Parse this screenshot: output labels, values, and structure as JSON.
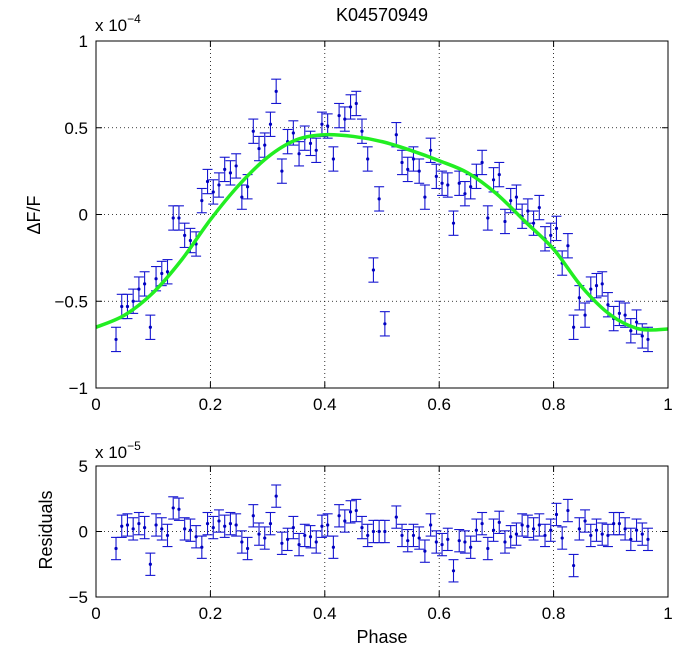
{
  "chart_data": [
    {
      "type": "scatter",
      "title": "K04570949",
      "ylabel": "ΔF/F",
      "xlabel": "",
      "exponent_label": "x 10",
      "exponent_power": "−4",
      "xlim": [
        0,
        1
      ],
      "ylim": [
        -1,
        1
      ],
      "xticks": [
        "0",
        "0.2",
        "0.4",
        "0.6",
        "0.8",
        "1"
      ],
      "yticks": [
        "−1",
        "−0.5",
        "0",
        "0.5",
        "1"
      ],
      "grid": true,
      "series": [
        {
          "kind": "errorbar",
          "color": "#0000c0",
          "x": [
            0.035,
            0.045,
            0.055,
            0.065,
            0.075,
            0.085,
            0.095,
            0.105,
            0.115,
            0.125,
            0.135,
            0.145,
            0.155,
            0.165,
            0.175,
            0.185,
            0.195,
            0.205,
            0.215,
            0.225,
            0.235,
            0.245,
            0.255,
            0.265,
            0.275,
            0.285,
            0.295,
            0.305,
            0.315,
            0.325,
            0.335,
            0.345,
            0.355,
            0.365,
            0.375,
            0.385,
            0.395,
            0.405,
            0.415,
            0.425,
            0.435,
            0.445,
            0.455,
            0.465,
            0.475,
            0.485,
            0.495,
            0.505,
            0.525,
            0.535,
            0.545,
            0.555,
            0.565,
            0.575,
            0.585,
            0.595,
            0.605,
            0.615,
            0.625,
            0.635,
            0.645,
            0.655,
            0.665,
            0.675,
            0.685,
            0.695,
            0.705,
            0.715,
            0.725,
            0.735,
            0.745,
            0.755,
            0.765,
            0.775,
            0.785,
            0.795,
            0.805,
            0.815,
            0.825,
            0.835,
            0.845,
            0.855,
            0.865,
            0.875,
            0.885,
            0.895,
            0.905,
            0.915,
            0.925,
            0.935,
            0.945,
            0.955,
            0.965
          ],
          "y": [
            -0.72,
            -0.53,
            -0.53,
            -0.5,
            -0.43,
            -0.4,
            -0.65,
            -0.37,
            -0.34,
            -0.33,
            -0.02,
            -0.02,
            -0.12,
            -0.15,
            -0.17,
            0.08,
            0.19,
            0.13,
            0.17,
            0.26,
            0.24,
            0.28,
            0.1,
            0.16,
            0.48,
            0.38,
            0.4,
            0.52,
            0.71,
            0.25,
            0.42,
            0.47,
            0.35,
            0.44,
            0.41,
            0.37,
            0.52,
            0.51,
            0.32,
            0.57,
            0.55,
            0.62,
            0.64,
            0.48,
            0.32,
            -0.32,
            0.09,
            -0.63,
            0.46,
            0.3,
            0.26,
            0.32,
            0.25,
            0.1,
            0.37,
            0.22,
            0.18,
            0.17,
            -0.05,
            0.18,
            0.12,
            0.16,
            0.22,
            0.3,
            -0.02,
            0.2,
            0.23,
            -0.04,
            0.08,
            0.1,
            -0.01,
            0.02,
            -0.05,
            0.04,
            -0.14,
            -0.12,
            -0.08,
            -0.28,
            -0.18,
            -0.65,
            -0.48,
            -0.58,
            -0.43,
            -0.41,
            -0.4,
            -0.52,
            -0.6,
            -0.57,
            -0.58,
            -0.67,
            -0.62,
            -0.7,
            -0.72
          ],
          "err": 0.07
        },
        {
          "kind": "line",
          "color": "#22ee22",
          "x": [
            0,
            0.05,
            0.1,
            0.15,
            0.2,
            0.25,
            0.3,
            0.35,
            0.4,
            0.45,
            0.5,
            0.55,
            0.6,
            0.65,
            0.7,
            0.75,
            0.8,
            0.85,
            0.9,
            0.95,
            1.0
          ],
          "y": [
            -0.65,
            -0.58,
            -0.45,
            -0.26,
            -0.03,
            0.17,
            0.33,
            0.43,
            0.46,
            0.45,
            0.42,
            0.37,
            0.31,
            0.24,
            0.12,
            -0.04,
            -0.2,
            -0.42,
            -0.58,
            -0.66,
            -0.66
          ]
        }
      ]
    },
    {
      "type": "scatter",
      "title": "",
      "xlabel": "Phase",
      "ylabel": "Residuals",
      "exponent_label": "x 10",
      "exponent_power": "−5",
      "xlim": [
        0,
        1
      ],
      "ylim": [
        -5,
        5
      ],
      "xticks": [
        "0",
        "0.2",
        "0.4",
        "0.6",
        "0.8",
        "1"
      ],
      "yticks": [
        "−5",
        "0",
        "5"
      ],
      "grid": true,
      "series": [
        {
          "kind": "errorbar",
          "color": "#0000c0",
          "x": [
            0.035,
            0.045,
            0.055,
            0.065,
            0.075,
            0.085,
            0.095,
            0.105,
            0.115,
            0.125,
            0.135,
            0.145,
            0.155,
            0.165,
            0.175,
            0.185,
            0.195,
            0.205,
            0.215,
            0.225,
            0.235,
            0.245,
            0.255,
            0.265,
            0.275,
            0.285,
            0.295,
            0.305,
            0.315,
            0.325,
            0.335,
            0.345,
            0.355,
            0.365,
            0.375,
            0.385,
            0.395,
            0.405,
            0.415,
            0.425,
            0.435,
            0.445,
            0.455,
            0.465,
            0.475,
            0.485,
            0.495,
            0.505,
            0.525,
            0.535,
            0.545,
            0.555,
            0.565,
            0.575,
            0.585,
            0.595,
            0.605,
            0.615,
            0.625,
            0.635,
            0.645,
            0.655,
            0.665,
            0.675,
            0.685,
            0.695,
            0.705,
            0.715,
            0.725,
            0.735,
            0.745,
            0.755,
            0.765,
            0.775,
            0.785,
            0.795,
            0.805,
            0.815,
            0.825,
            0.835,
            0.845,
            0.855,
            0.865,
            0.875,
            0.885,
            0.895,
            0.905,
            0.915,
            0.925,
            0.935,
            0.945,
            0.955,
            0.965
          ],
          "y": [
            -1.3,
            0.4,
            0.5,
            0.2,
            0.6,
            0.3,
            -2.5,
            0.5,
            0.2,
            -0.3,
            1.8,
            1.7,
            0.2,
            0.1,
            -0.4,
            -1.2,
            0.6,
            0.3,
            0.8,
            0.4,
            0.6,
            0.5,
            -0.8,
            -1.3,
            1.2,
            -0.2,
            -0.5,
            0.6,
            2.7,
            -0.9,
            -0.6,
            0.3,
            -1.0,
            -0.3,
            -0.4,
            -0.8,
            0.4,
            0.5,
            -1.2,
            1.2,
            0.8,
            1.5,
            1.6,
            0.3,
            -0.3,
            0,
            0,
            0,
            1.1,
            -0.3,
            -0.7,
            -0.3,
            -0.5,
            -1.5,
            0.5,
            -0.8,
            -1.0,
            -0.6,
            -3.0,
            -0.7,
            -0.8,
            -1.2,
            0.1,
            0.6,
            -1.3,
            0.1,
            0.7,
            -0.8,
            -0.4,
            -0.2,
            0.5,
            0.4,
            0.2,
            0.5,
            -0.3,
            0.1,
            1.3,
            -0.5,
            1.6,
            -2.6,
            0.2,
            0.8,
            -0.3,
            0.1,
            -0.2,
            -0.3,
            0.6,
            0.6,
            0.2,
            -0.6,
            0.1,
            -0.2,
            -0.6
          ],
          "err": 0.85
        }
      ]
    }
  ]
}
